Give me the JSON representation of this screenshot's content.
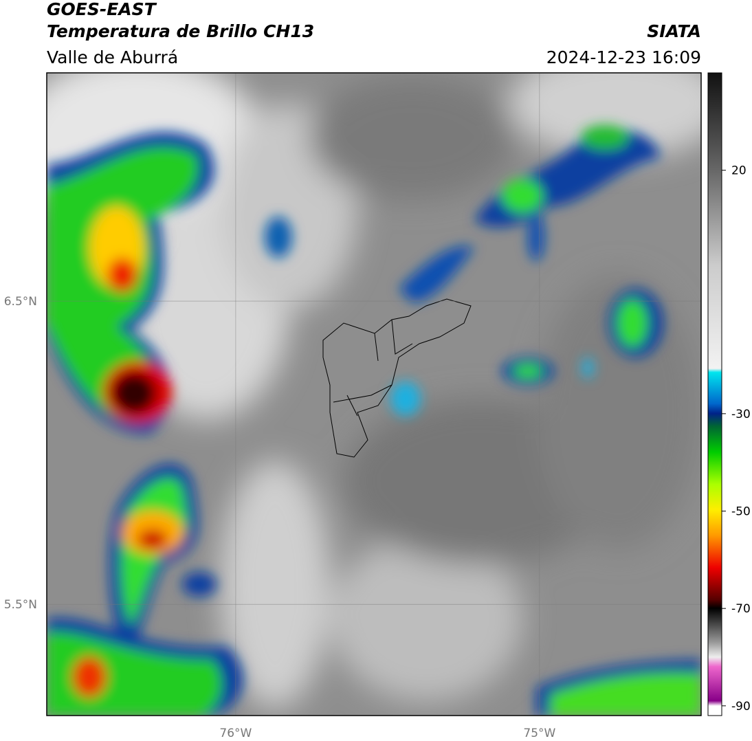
{
  "header": {
    "title": "GOES-EAST",
    "subtitle": "Temperatura de Brillo CH13",
    "region": "Valle de Aburrá",
    "source": "SIATA",
    "timestamp": "2024-12-23 16:09"
  },
  "map": {
    "xlim": [
      -76.622,
      -74.468
    ],
    "ylim": [
      5.133,
      7.253
    ],
    "xticks": [
      {
        "value": -76,
        "label": "76°W"
      },
      {
        "value": -75,
        "label": "75°W"
      }
    ],
    "yticks": [
      {
        "value": 6.5,
        "label": "6.5°N"
      },
      {
        "value": 5.5,
        "label": "5.5°N"
      }
    ],
    "grid": true
  },
  "colorbar": {
    "lim": [
      -92,
      40
    ],
    "ticks": [
      20,
      -30,
      -50,
      -70,
      -90
    ]
  }
}
